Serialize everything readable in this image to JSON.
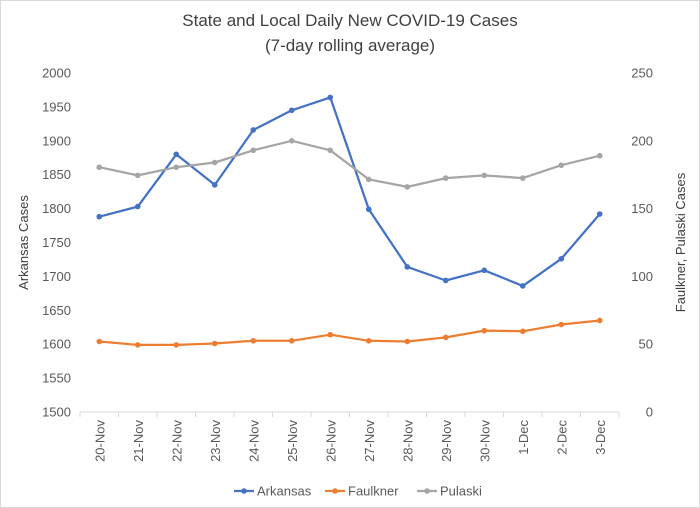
{
  "chart_data": {
    "type": "line",
    "title": [
      "State and Local Daily New COVID-19 Cases",
      "(7-day rolling average)"
    ],
    "categories": [
      "20-Nov",
      "21-Nov",
      "22-Nov",
      "23-Nov",
      "24-Nov",
      "25-Nov",
      "26-Nov",
      "27-Nov",
      "28-Nov",
      "29-Nov",
      "30-Nov",
      "1-Dec",
      "2-Dec",
      "3-Dec"
    ],
    "y_left": {
      "label": "Arkansas Cases",
      "min": 1500,
      "max": 2000,
      "step": 50,
      "ticks": [
        "1500",
        "1550",
        "1600",
        "1650",
        "1700",
        "1750",
        "1800",
        "1850",
        "1900",
        "1950",
        "2000"
      ]
    },
    "y_right": {
      "label": "Faulkner, Pulaski Cases",
      "min": 0,
      "max": 250,
      "step": 50,
      "ticks": [
        "0",
        "50",
        "100",
        "150",
        "200",
        "250"
      ]
    },
    "series": [
      {
        "name": "Arkansas",
        "axis": "left",
        "color": "#4472c4",
        "values": [
          1788,
          1803,
          1880,
          1835,
          1916,
          1945,
          1964,
          1799,
          1714,
          1694,
          1709,
          1686,
          1726,
          1792
        ]
      },
      {
        "name": "Faulkner",
        "axis": "right",
        "color": "#ed7d31",
        "values": [
          52,
          49.5,
          49.5,
          50.5,
          52.5,
          52.5,
          57,
          52.5,
          52,
          55,
          60,
          59.5,
          64.5,
          67.5
        ]
      },
      {
        "name": "Pulaski",
        "axis": "right",
        "color": "#a5a5a5",
        "values": [
          180.5,
          174.5,
          180.5,
          184,
          193,
          200,
          193,
          171.5,
          166,
          172.5,
          174.5,
          172.5,
          182,
          189
        ]
      }
    ],
    "legend": {
      "position": "bottom"
    },
    "grid": false
  }
}
